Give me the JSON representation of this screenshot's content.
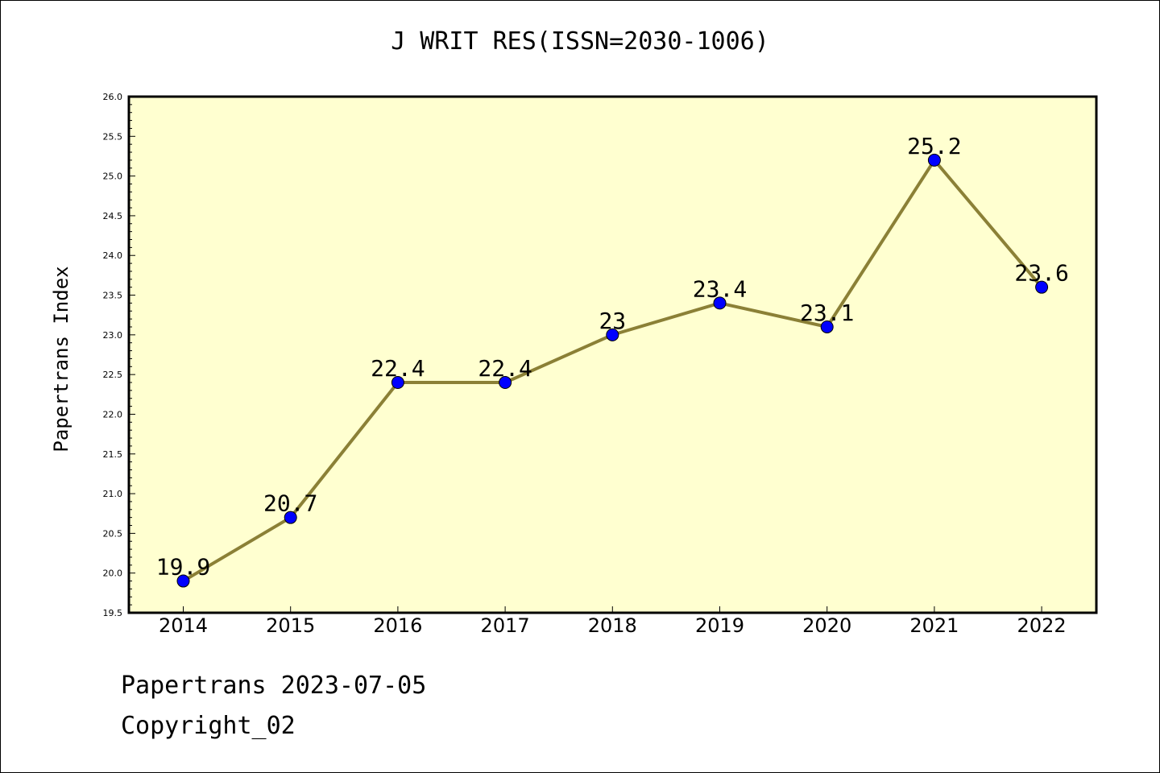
{
  "chart_data": {
    "type": "line",
    "title": "J WRIT RES(ISSN=2030-1006)",
    "xlabel": "",
    "ylabel": "Papertrans Index",
    "categories": [
      "2014",
      "2015",
      "2016",
      "2017",
      "2018",
      "2019",
      "2020",
      "2021",
      "2022"
    ],
    "series": [
      {
        "values": [
          19.9,
          20.7,
          22.4,
          22.4,
          23,
          23.4,
          23.1,
          25.2,
          23.6
        ],
        "labels": [
          "19.9",
          "20.7",
          "22.4",
          "22.4",
          "23",
          "23.4",
          "23.1",
          "25.2",
          "23.6"
        ]
      }
    ],
    "ylim": [
      19.5,
      26.0
    ],
    "yticks": [
      "19.5",
      "20.0",
      "20.5",
      "21.0",
      "21.5",
      "22.0",
      "22.5",
      "23.0",
      "23.5",
      "24.0",
      "24.5",
      "25.0",
      "25.5",
      "26.0"
    ],
    "grid": false,
    "legend": "none",
    "colors": {
      "plot_background": "#ffffd0",
      "line": "#8b8036",
      "marker": "#0000ff"
    }
  },
  "footer": {
    "date_text": "Papertrans 2023-07-05",
    "copyright_text": "Copyright_02"
  }
}
